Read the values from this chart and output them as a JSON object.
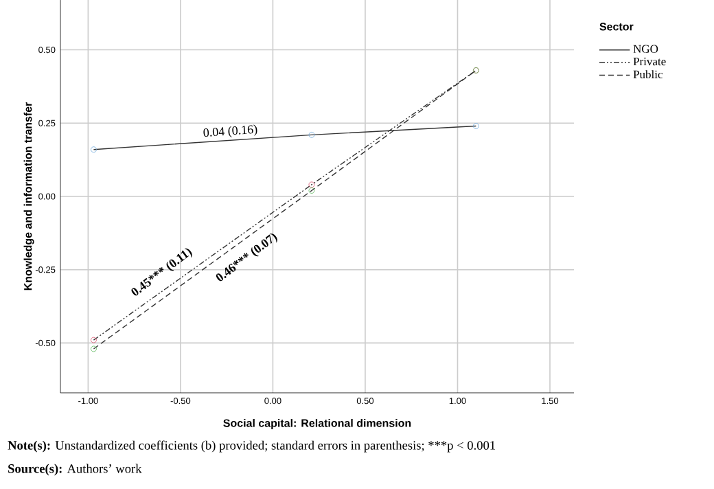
{
  "chart_data": {
    "type": "line",
    "xlabel": "Social capital: Relational dimension",
    "ylabel": "Knowledge and information transfer",
    "legend_title": "Sector",
    "x": [
      -0.97,
      0.21,
      1.1
    ],
    "series": [
      {
        "name": "NGO",
        "color": "#333333",
        "line_style": "solid",
        "colors": [
          "#6fa8dc",
          "#6fa8dc",
          "#6fa8dc"
        ],
        "values": [
          0.16,
          0.21,
          0.24
        ]
      },
      {
        "name": "Private",
        "color": "#333333",
        "line_style": "dashdot",
        "colors": [
          "#d9536f",
          "#d9536f",
          "#d9536f"
        ],
        "values": [
          -0.49,
          0.04,
          0.43
        ]
      },
      {
        "name": "Public",
        "color": "#333333",
        "line_style": "dashed",
        "colors": [
          "#5cb85c",
          "#5cb85c",
          "#5cb85c"
        ],
        "values": [
          -0.52,
          0.02,
          0.43
        ]
      }
    ],
    "marker": "circle",
    "xlim": [
      -1.15,
      1.63
    ],
    "ylim": [
      -0.67,
      0.67
    ],
    "xticks": [
      {
        "value": -1,
        "label": "-1.00"
      },
      {
        "value": -0.5,
        "label": "-0.50"
      },
      {
        "value": 0,
        "label": "0.00"
      },
      {
        "value": 0.5,
        "label": "0.50"
      },
      {
        "value": 1,
        "label": "1.00"
      },
      {
        "value": 1.5,
        "label": "1.50"
      }
    ],
    "yticks": [
      {
        "value": -0.5,
        "label": "-0.50"
      },
      {
        "value": -0.25,
        "label": "-0.25"
      },
      {
        "value": 0,
        "label": "0.00"
      },
      {
        "value": 0.25,
        "label": "0.25"
      },
      {
        "value": 0.5,
        "label": "0.50"
      }
    ],
    "grid": true,
    "legend": "right",
    "annotations": [
      "0.04 (0.16)",
      "0.45*** (0.11)",
      "0.46*** (0.07)",
      "**Note(s):** Unstandardized coefficients (b) provided; standard errors in parenthesis; ***p < 0.001",
      "**Source(s):** Authors’ work"
    ]
  }
}
